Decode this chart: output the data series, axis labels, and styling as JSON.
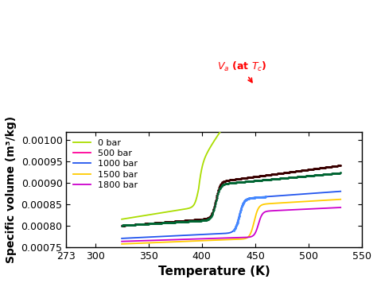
{
  "xlabel": "Temperature (K)",
  "ylabel": "Specific volume (m³/kg)",
  "xlim": [
    273,
    550
  ],
  "ylim": [
    0.00075,
    0.00102
  ],
  "xticks": [
    273,
    300,
    350,
    400,
    450,
    500,
    550
  ],
  "yticks": [
    0.00075,
    0.0008,
    0.00085,
    0.0009,
    0.00095,
    0.001
  ],
  "legend_labels": [
    "0 bar",
    "500 bar",
    "1000 bar",
    "1500 bar",
    "1800 bar"
  ],
  "line_colors": [
    "#aadd00",
    "#ff0099",
    "#2255ee",
    "#ffcc00",
    "#cc00cc"
  ],
  "background_color": "#ffffff",
  "circ_T": 449,
  "annotation_label": "$V_a$ (at $T_c$)"
}
